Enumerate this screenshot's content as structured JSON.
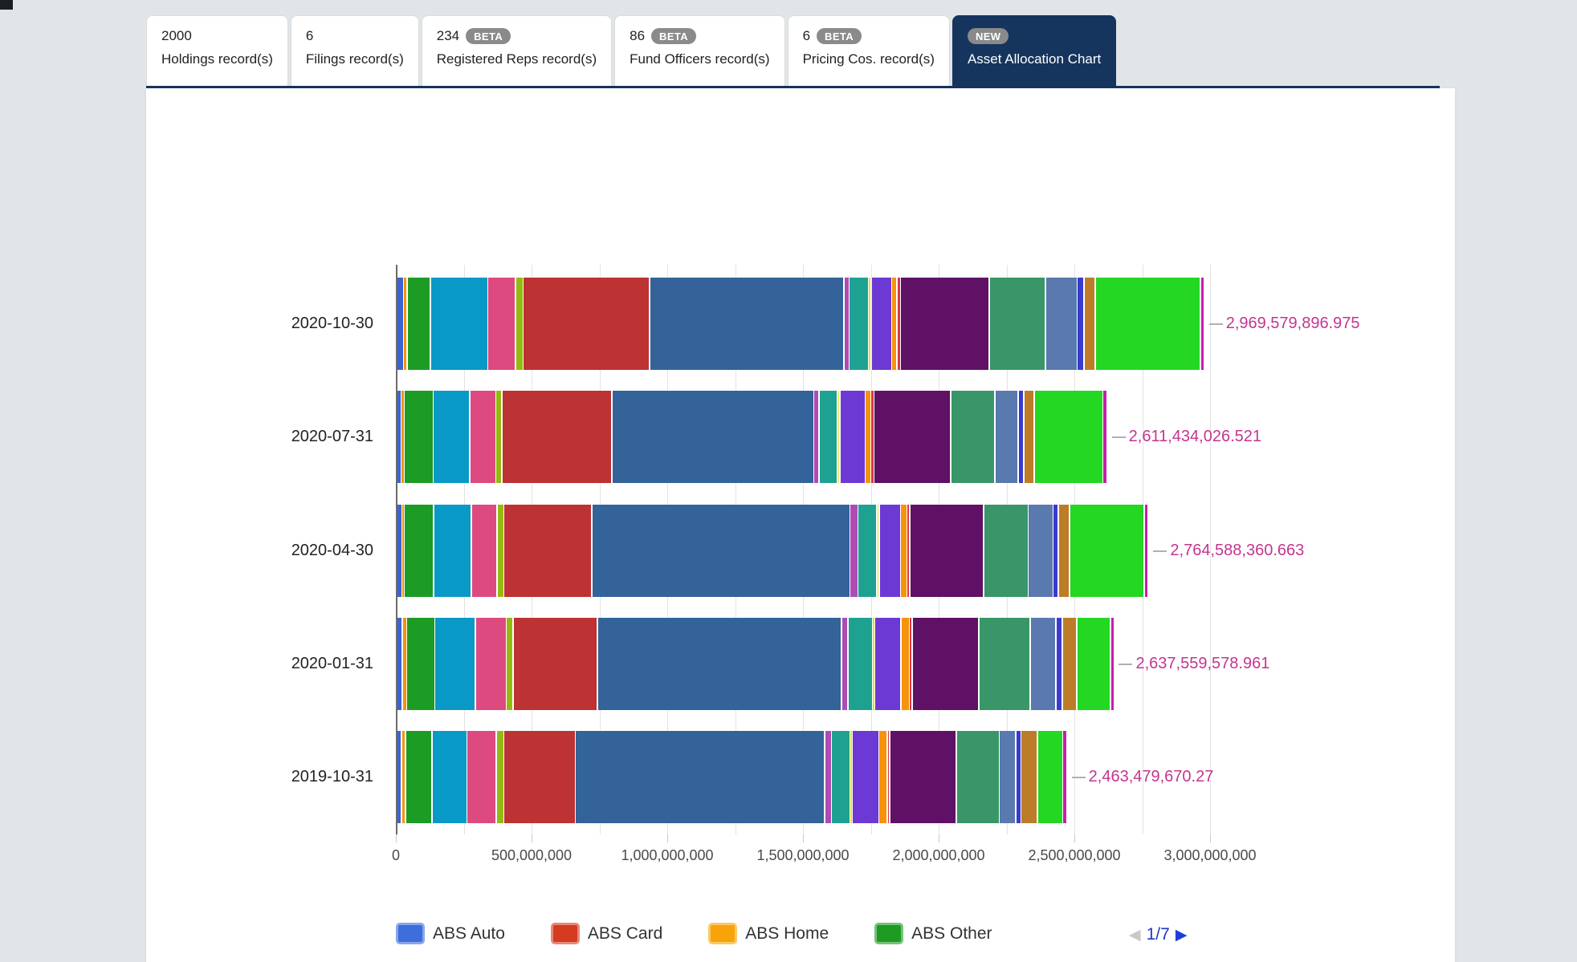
{
  "tabs": [
    {
      "count": "2000",
      "badge": "",
      "label": "Holdings record(s)"
    },
    {
      "count": "6",
      "badge": "",
      "label": "Filings record(s)"
    },
    {
      "count": "234",
      "badge": "BETA",
      "label": "Registered Reps record(s)"
    },
    {
      "count": "86",
      "badge": "BETA",
      "label": "Fund Officers record(s)"
    },
    {
      "count": "6",
      "badge": "BETA",
      "label": "Pricing Cos. record(s)"
    },
    {
      "count": "",
      "badge": "NEW",
      "label": "Asset Allocation Chart"
    }
  ],
  "colors": {
    "page_bg": "#e2e5e8",
    "navy": "#16355e",
    "card_bg": "#ffffff",
    "tab_border": "#d9dcde",
    "badge_bg": "#8a8a8a",
    "value_label": "#c4358f",
    "axis_text": "#4a4a4a",
    "category_text": "#222222",
    "gridline": "#e3e3e3",
    "axis_line": "#6b6b6b",
    "connector_dash": "#b0b0b0",
    "pagination_blue": "#2136c8",
    "pagination_next": "#1d3fd6",
    "pagination_prev_gray": "#c9c9c9"
  },
  "chart_data": {
    "type": "bar",
    "orientation": "horizontal-stacked",
    "title": "",
    "xlabel": "",
    "ylabel": "",
    "xlim": [
      0,
      3000000000
    ],
    "x_tick_labels": [
      "0",
      "500,000,000",
      "1,000,000,000",
      "1,500,000,000",
      "2,000,000,000",
      "2,500,000,000",
      "3,000,000,000"
    ],
    "gridlines_every": 250000000,
    "categories": [
      "2020-10-30",
      "2020-07-31",
      "2020-04-30",
      "2020-01-31",
      "2019-10-31"
    ],
    "totals": [
      2969579896.975,
      2611434026.521,
      2764588360.663,
      2637559578.961,
      2463479670.27
    ],
    "total_labels": [
      "2,969,579,896.975",
      "2,611,434,026.521",
      "2,764,588,360.663",
      "2,637,559,578.961",
      "2,463,479,670.27"
    ],
    "stack_palette": [
      "#3d63d1",
      "#f6930a",
      "#1c9b25",
      "#0899c7",
      "#dd4a80",
      "#94ba10",
      "#bd3233",
      "#336399",
      "#ac4cb4",
      "#1fa192",
      "#e4e02c",
      "#6c39d5",
      "#f6930a",
      "#d43848",
      "#5f1166",
      "#389668",
      "#5979af",
      "#3a3bce",
      "#bd7c27",
      "#23d723",
      "#c81cad"
    ],
    "bars": [
      {
        "category": "2020-10-30",
        "total_label": "2,969,579,896.975",
        "total": 2969579896.975,
        "segment_pcts": [
          0.7,
          0.3,
          2.8,
          7.2,
          3.4,
          0.8,
          16.0,
          24.7,
          0.5,
          2.3,
          0.2,
          2.5,
          0.5,
          0.3,
          11.2,
          7.0,
          3.9,
          0.7,
          1.3,
          13.3,
          0.3
        ]
      },
      {
        "category": "2020-07-31",
        "total_label": "2,611,434,026.521",
        "total": 2611434026.521,
        "segment_pcts": [
          0.4,
          0.3,
          3.9,
          5.0,
          3.5,
          0.7,
          15.3,
          28.3,
          0.6,
          2.4,
          0.2,
          3.4,
          0.6,
          0.3,
          10.6,
          6.1,
          3.1,
          0.6,
          1.3,
          9.5,
          0.4
        ]
      },
      {
        "category": "2020-04-30",
        "total_label": "2,764,588,360.663",
        "total": 2764588360.663,
        "segment_pcts": [
          0.5,
          0.2,
          3.8,
          4.9,
          3.3,
          0.8,
          11.7,
          34.7,
          0.9,
          2.4,
          0.2,
          2.7,
          0.7,
          0.2,
          9.8,
          5.9,
          3.2,
          0.5,
          1.4,
          9.9,
          0.4
        ]
      },
      {
        "category": "2020-01-31",
        "total_label": "2,637,559,578.961",
        "total": 2637559578.961,
        "segment_pcts": [
          0.6,
          0.4,
          3.7,
          5.4,
          4.1,
          0.8,
          11.4,
          33.4,
          0.7,
          3.2,
          0.2,
          3.4,
          1.0,
          0.2,
          9.0,
          6.9,
          3.4,
          0.7,
          1.8,
          4.5,
          0.3
        ]
      },
      {
        "category": "2019-10-31",
        "total_label": "2,463,479,670.27",
        "total": 2463479670.27,
        "segment_pcts": [
          0.5,
          0.4,
          3.7,
          4.9,
          4.1,
          0.9,
          10.2,
          36.1,
          0.8,
          2.5,
          0.2,
          3.7,
          1.0,
          0.2,
          9.5,
          6.1,
          2.2,
          0.6,
          2.2,
          3.5,
          0.4
        ]
      }
    ],
    "legend": {
      "position": "bottom",
      "items": [
        {
          "label": "ABS Auto",
          "color": "#3e6edb",
          "border": "#88a7ea"
        },
        {
          "label": "ABS Card",
          "color": "#d43b21",
          "border": "#e58a77"
        },
        {
          "label": "ABS Home",
          "color": "#f9a30a",
          "border": "#fbc96a"
        },
        {
          "label": "ABS Other",
          "color": "#1d9b23",
          "border": "#79c17b"
        }
      ],
      "pagination": {
        "prev": "◀",
        "page": "1/7",
        "next": "▶"
      }
    }
  }
}
